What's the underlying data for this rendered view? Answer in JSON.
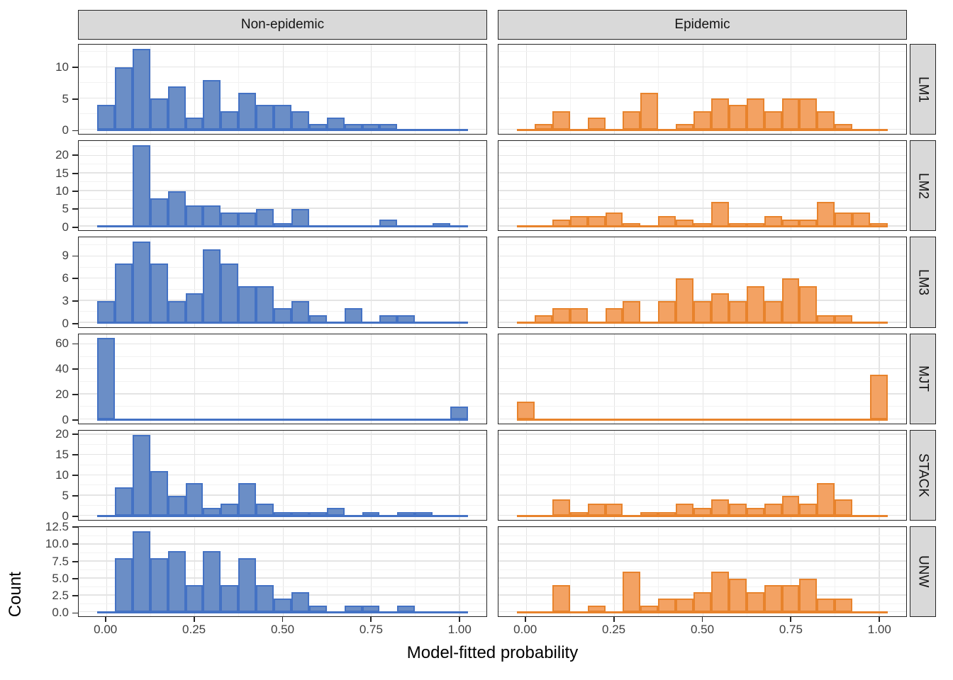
{
  "colors": {
    "non_epidemic_fill": "#6b8ec6",
    "non_epidemic_stroke": "#4472c4",
    "epidemic_fill": "#f3a263",
    "epidemic_stroke": "#e8832c",
    "strip_bg": "#d9d9d9",
    "panel_border": "#262626",
    "grid_major": "#e4e4e4",
    "grid_minor": "#f2f2f2",
    "tick_label": "#404040",
    "title": "#000000"
  },
  "chart_data": {
    "type": "bar",
    "subtype": "faceted-histogram",
    "x_title": "Model-fitted probability",
    "y_title": "Count",
    "facet_columns": [
      "Non-epidemic",
      "Epidemic"
    ],
    "facet_rows": [
      "LM1",
      "LM2",
      "LM3",
      "MJT",
      "STACK",
      "UNW"
    ],
    "binwidth": 0.05,
    "x_domain": [
      -0.0775,
      1.0775
    ],
    "x_tick_values": [
      0,
      0.25,
      0.5,
      0.75,
      1.0
    ],
    "x_tick_labels": [
      "0.00",
      "0.25",
      "0.50",
      "0.75",
      "1.00"
    ],
    "x_minor_gridlines": [
      0.125,
      0.375,
      0.625,
      0.875
    ],
    "bin_centers": [
      0.0,
      0.05,
      0.1,
      0.15,
      0.2,
      0.25,
      0.3,
      0.35,
      0.4,
      0.45,
      0.5,
      0.55,
      0.6,
      0.65,
      0.7,
      0.75,
      0.8,
      0.85,
      0.9,
      0.95,
      1.0
    ],
    "rows": [
      {
        "label": "LM1",
        "ymax": 13,
        "y_tick_values": [
          0,
          5,
          10
        ],
        "y_tick_labels": [
          "0",
          "5",
          "10"
        ],
        "y_minor_gridlines": [
          2.5,
          7.5,
          12.5
        ],
        "series": {
          "non_epidemic": [
            4,
            10,
            13,
            5,
            7,
            2,
            8,
            3,
            6,
            4,
            4,
            3,
            1,
            2,
            1,
            1,
            1,
            0,
            0,
            0,
            0
          ],
          "epidemic": [
            0,
            1,
            3,
            0,
            2,
            0,
            3,
            6,
            0,
            1,
            3,
            5,
            4,
            5,
            3,
            5,
            5,
            3,
            1,
            0,
            0
          ]
        }
      },
      {
        "label": "LM2",
        "ymax": 23,
        "y_tick_values": [
          0,
          5,
          10,
          15,
          20
        ],
        "y_tick_labels": [
          "0",
          "5",
          "10",
          "15",
          "20"
        ],
        "y_minor_gridlines": [
          2.5,
          7.5,
          12.5,
          17.5,
          22.5
        ],
        "series": {
          "non_epidemic": [
            0,
            0,
            23,
            8,
            10,
            6,
            6,
            4,
            4,
            5,
            1,
            5,
            0,
            0,
            0,
            0,
            2,
            0,
            0,
            1,
            0
          ],
          "epidemic": [
            0,
            0,
            2,
            3,
            3,
            4,
            1,
            0,
            3,
            2,
            1,
            7,
            1,
            1,
            3,
            2,
            2,
            7,
            4,
            4,
            1
          ]
        }
      },
      {
        "label": "LM3",
        "ymax": 11,
        "y_tick_values": [
          0,
          3,
          6,
          9
        ],
        "y_tick_labels": [
          "0",
          "3",
          "6",
          "9"
        ],
        "y_minor_gridlines": [
          1.5,
          4.5,
          7.5,
          10.5
        ],
        "series": {
          "non_epidemic": [
            3,
            8,
            11,
            8,
            3,
            4,
            10,
            8,
            5,
            5,
            2,
            3,
            1,
            0,
            2,
            0,
            1,
            1,
            0,
            0,
            0
          ],
          "epidemic": [
            0,
            1,
            2,
            2,
            0,
            2,
            3,
            0,
            3,
            6,
            3,
            4,
            3,
            5,
            3,
            6,
            5,
            1,
            1,
            0,
            0
          ]
        }
      },
      {
        "label": "MJT",
        "ymax": 65,
        "y_tick_values": [
          0,
          20,
          40,
          60
        ],
        "y_tick_labels": [
          "0",
          "20",
          "40",
          "60"
        ],
        "y_minor_gridlines": [
          10,
          30,
          50
        ],
        "series": {
          "non_epidemic": [
            65,
            0,
            0,
            0,
            0,
            0,
            0,
            0,
            0,
            0,
            0,
            0,
            0,
            0,
            0,
            0,
            0,
            0,
            0,
            0,
            10
          ],
          "epidemic": [
            14,
            0,
            0,
            0,
            0,
            0,
            0,
            0,
            0,
            0,
            0,
            0,
            0,
            0,
            0,
            0,
            0,
            0,
            0,
            0,
            36
          ]
        }
      },
      {
        "label": "STACK",
        "ymax": 20,
        "y_tick_values": [
          0,
          5,
          10,
          15,
          20
        ],
        "y_tick_labels": [
          "0",
          "5",
          "10",
          "15",
          "20"
        ],
        "y_minor_gridlines": [
          2.5,
          7.5,
          12.5,
          17.5
        ],
        "series": {
          "non_epidemic": [
            0,
            7,
            20,
            11,
            5,
            8,
            2,
            3,
            8,
            3,
            1,
            1,
            1,
            2,
            0,
            1,
            0,
            1,
            1,
            0,
            0
          ],
          "epidemic": [
            0,
            0,
            4,
            1,
            3,
            3,
            0,
            1,
            1,
            3,
            2,
            4,
            3,
            2,
            3,
            5,
            3,
            8,
            4,
            0,
            0
          ]
        }
      },
      {
        "label": "UNW",
        "ymax": 12,
        "y_tick_values": [
          0,
          2.5,
          5,
          7.5,
          10,
          12.5
        ],
        "y_tick_labels": [
          "0.0",
          "2.5",
          "5.0",
          "7.5",
          "10.0",
          "12.5"
        ],
        "y_minor_gridlines": [
          1.25,
          3.75,
          6.25,
          8.75,
          11.25
        ],
        "series": {
          "non_epidemic": [
            0,
            8,
            12,
            8,
            9,
            4,
            9,
            4,
            8,
            4,
            2,
            3,
            1,
            0,
            1,
            1,
            0,
            1,
            0,
            0,
            0
          ],
          "epidemic": [
            0,
            0,
            4,
            0,
            1,
            0,
            6,
            1,
            2,
            2,
            3,
            6,
            5,
            3,
            4,
            4,
            5,
            2,
            2,
            0,
            0
          ]
        }
      }
    ]
  }
}
